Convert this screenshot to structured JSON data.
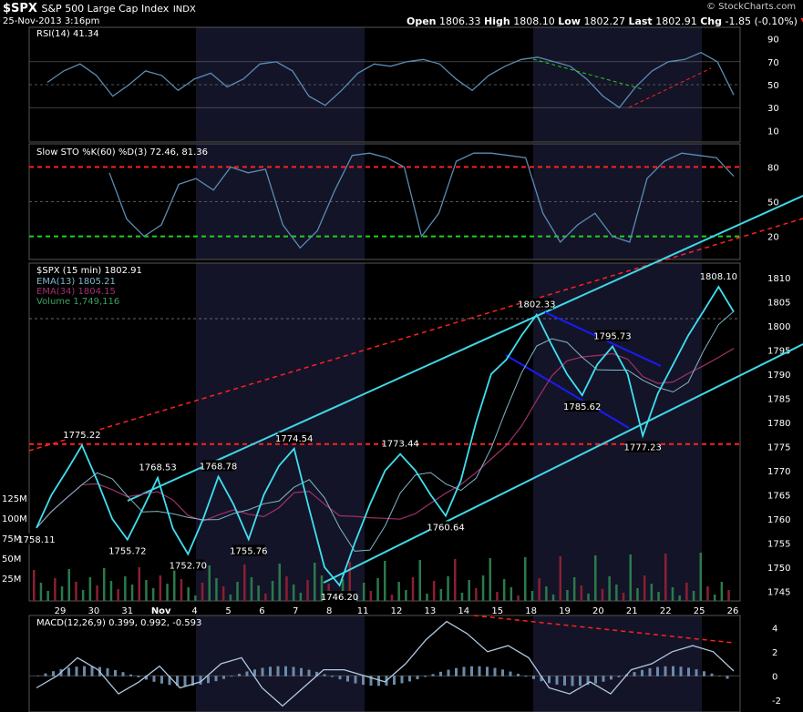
{
  "header": {
    "symbol": "$SPX",
    "name": "S&P 500 Large Cap Index",
    "exchange": "INDX",
    "date": "25-Nov-2013 3:16pm",
    "open_label": "Open",
    "open": "1806.33",
    "high_label": "High",
    "high": "1808.10",
    "low_label": "Low",
    "low": "1802.27",
    "last_label": "Last",
    "last": "1802.91",
    "chg_label": "Chg",
    "chg": "-1.85 (-0.10%)",
    "watermark": "© StockCharts.com"
  },
  "colors": {
    "price": "#3fe0f0",
    "ema13": "#7fb8c8",
    "ema34": "#a0306a",
    "rsi": "#5a8cb4",
    "red_dash": "#ff2020",
    "green_dash": "#20d020",
    "channel": "#40d8e8",
    "flag": "#1a1aff",
    "volume_up": "#2a7a4a",
    "volume_down": "#8a2030",
    "shade": "#141428"
  },
  "chart_data": [
    {
      "type": "line",
      "panel": "RSI",
      "label": "RSI(14) 41.34",
      "y_ticks": [
        "90",
        "70",
        "50",
        "30",
        "10"
      ],
      "ylim": [
        0,
        100
      ],
      "series": [
        {
          "name": "RSI(14)",
          "values": [
            52,
            62,
            68,
            58,
            40,
            50,
            62,
            58,
            45,
            55,
            60,
            48,
            55,
            68,
            70,
            62,
            40,
            32,
            45,
            60,
            68,
            66,
            70,
            72,
            68,
            55,
            45,
            58,
            66,
            72,
            74,
            70,
            66,
            55,
            40,
            30,
            48,
            62,
            70,
            72,
            78,
            70,
            41
          ]
        }
      ]
    },
    {
      "type": "line",
      "panel": "Slow STO",
      "label": "Slow STO %K(60) %D(3) 72.46, 81.36",
      "y_ticks": [
        "80",
        "50",
        "20"
      ],
      "ylim": [
        0,
        100
      ],
      "series": [
        {
          "name": "%K(60)",
          "values": [
            75,
            35,
            20,
            30,
            65,
            70,
            60,
            80,
            75,
            78,
            30,
            10,
            25,
            60,
            90,
            92,
            88,
            80,
            20,
            40,
            85,
            92,
            92,
            90,
            88,
            40,
            15,
            30,
            40,
            20,
            15,
            70,
            85,
            92,
            90,
            88,
            72
          ]
        }
      ]
    },
    {
      "type": "line",
      "panel": "Price",
      "label": "$SPX (15 min) 1802.91",
      "legend": [
        "EMA(13) 1805.21",
        "EMA(34) 1804.15",
        "Volume 1,749,116"
      ],
      "x_ticks": [
        "29",
        "30",
        "31",
        "Nov",
        "4",
        "5",
        "6",
        "7",
        "8",
        "11",
        "12",
        "13",
        "14",
        "15",
        "18",
        "19",
        "20",
        "21",
        "22",
        "25",
        "26"
      ],
      "y_ticks": [
        "1810",
        "1805",
        "1800",
        "1795",
        "1790",
        "1785",
        "1780",
        "1775",
        "1770",
        "1765",
        "1760",
        "1755",
        "1750",
        "1745"
      ],
      "volume_ticks": [
        "125M",
        "100M",
        "75M",
        "50M",
        "25M"
      ],
      "ylim": [
        1743,
        1813
      ],
      "series": [
        {
          "name": "$SPX",
          "values": [
            1758.11,
            1765,
            1770,
            1775.22,
            1768,
            1760,
            1755.72,
            1762,
            1768.53,
            1758,
            1752.7,
            1760,
            1768.78,
            1763,
            1755.76,
            1765,
            1771,
            1774.54,
            1762,
            1750,
            1746.2,
            1755,
            1763,
            1770,
            1773.44,
            1770,
            1765,
            1760.64,
            1768,
            1780,
            1790,
            1793,
            1798,
            1802.33,
            1796,
            1790,
            1785.62,
            1792,
            1795.73,
            1790,
            1777.23,
            1786,
            1792,
            1798,
            1803,
            1808.1,
            1802.91
          ]
        }
      ],
      "annotations": [
        "1758.11",
        "1775.22",
        "1768.53",
        "1755.72",
        "1752.70",
        "1768.78",
        "1755.76",
        "1774.54",
        "1746.20",
        "1773.44",
        "1760.64",
        "1802.33",
        "1795.73",
        "1785.62",
        "1777.23",
        "1808.10"
      ]
    },
    {
      "type": "line",
      "panel": "MACD",
      "label": "MACD(12,26,9) 0.399, 0.992, -0.593",
      "y_ticks": [
        "4",
        "2",
        "0",
        "-2"
      ],
      "ylim": [
        -3,
        5
      ],
      "series": [
        {
          "name": "MACD",
          "values": [
            -1,
            0,
            1.5,
            0.5,
            -1.5,
            -0.5,
            0.8,
            -1,
            -0.5,
            1,
            1.5,
            -1,
            -2.5,
            -1,
            0.5,
            0.5,
            0,
            -0.5,
            1,
            3,
            4.5,
            3.5,
            2,
            2.5,
            1.5,
            -1,
            -1.5,
            -0.5,
            -1.5,
            0.5,
            1,
            2,
            2.5,
            2,
            0.4
          ]
        }
      ]
    }
  ]
}
